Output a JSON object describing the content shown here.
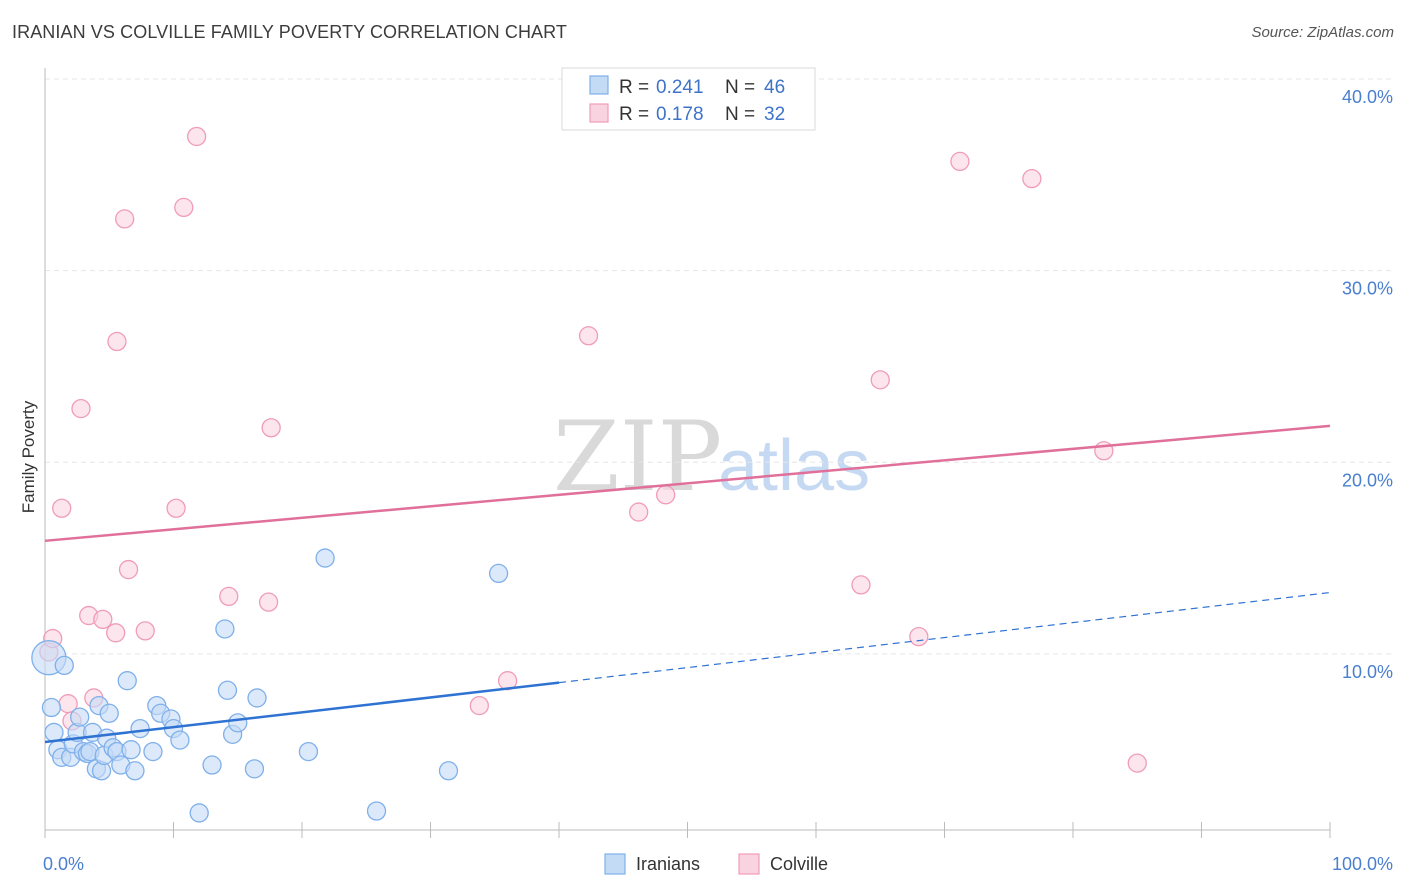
{
  "chart_data": {
    "type": "scatter",
    "title": "IRANIAN VS COLVILLE FAMILY POVERTY CORRELATION CHART",
    "source": "Source: ZipAtlas.com",
    "xlabel": "",
    "ylabel": "Family Poverty",
    "xlim": [
      0,
      100
    ],
    "ylim": [
      0,
      40
    ],
    "x_tick_labels": [
      "0.0%",
      "100.0%"
    ],
    "y_ticks": [
      10,
      20,
      30,
      40
    ],
    "y_tick_labels": [
      "10.0%",
      "20.0%",
      "30.0%",
      "40.0%"
    ],
    "watermark": {
      "zip": "ZIP",
      "atlas": "atlas"
    },
    "legend": [
      {
        "r_label": "R =",
        "r_value": "0.241",
        "n_label": "N =",
        "n_value": "46"
      },
      {
        "r_label": "R =",
        "r_value": "0.178",
        "n_label": "N =",
        "n_value": "32"
      }
    ],
    "series": [
      {
        "name": "Iranians",
        "color": "#7fb0ea",
        "fill": "#c4dbf6",
        "line_color": "#2e72d2",
        "trend": {
          "x0": 0,
          "y0": 5.4,
          "x1": 40,
          "y1": 8.5,
          "dash_x1": 100,
          "dash_y1": 13.2
        },
        "points": [
          [
            0.3,
            9.8
          ],
          [
            0.5,
            7.2
          ],
          [
            0.7,
            5.9
          ],
          [
            1.0,
            5.0
          ],
          [
            1.3,
            4.6
          ],
          [
            1.5,
            9.4
          ],
          [
            2.0,
            4.6
          ],
          [
            2.2,
            5.3
          ],
          [
            2.5,
            5.9
          ],
          [
            2.7,
            6.7
          ],
          [
            3.0,
            4.9
          ],
          [
            3.3,
            4.8
          ],
          [
            3.5,
            4.9
          ],
          [
            3.7,
            5.9
          ],
          [
            4.0,
            4.0
          ],
          [
            4.2,
            7.3
          ],
          [
            4.4,
            3.9
          ],
          [
            4.6,
            4.7
          ],
          [
            4.8,
            5.6
          ],
          [
            5.0,
            6.9
          ],
          [
            5.3,
            5.1
          ],
          [
            5.6,
            4.9
          ],
          [
            5.9,
            4.2
          ],
          [
            6.4,
            8.6
          ],
          [
            6.7,
            5.0
          ],
          [
            7.0,
            3.9
          ],
          [
            7.4,
            6.1
          ],
          [
            8.4,
            4.9
          ],
          [
            8.7,
            7.3
          ],
          [
            9.0,
            6.9
          ],
          [
            9.8,
            6.6
          ],
          [
            10.0,
            6.1
          ],
          [
            10.5,
            5.5
          ],
          [
            12.0,
            1.7
          ],
          [
            13.0,
            4.2
          ],
          [
            14.0,
            11.3
          ],
          [
            14.2,
            8.1
          ],
          [
            14.6,
            5.8
          ],
          [
            15.0,
            6.4
          ],
          [
            16.3,
            4.0
          ],
          [
            16.5,
            7.7
          ],
          [
            20.5,
            4.9
          ],
          [
            21.8,
            15.0
          ],
          [
            25.8,
            1.8
          ],
          [
            31.4,
            3.9
          ],
          [
            35.3,
            14.2
          ]
        ]
      },
      {
        "name": "Colville",
        "color": "#f09cb8",
        "fill": "#fad3e0",
        "line_color": "#e0709a",
        "trend": {
          "x0": 0,
          "y0": 15.9,
          "x1": 100,
          "y1": 21.9
        },
        "points": [
          [
            0.3,
            10.1
          ],
          [
            0.6,
            10.8
          ],
          [
            1.3,
            17.6
          ],
          [
            1.8,
            7.4
          ],
          [
            2.1,
            6.5
          ],
          [
            2.8,
            22.8
          ],
          [
            3.4,
            12.0
          ],
          [
            3.8,
            7.7
          ],
          [
            4.5,
            11.8
          ],
          [
            5.5,
            11.1
          ],
          [
            5.6,
            26.3
          ],
          [
            6.2,
            32.7
          ],
          [
            6.5,
            14.4
          ],
          [
            7.8,
            11.2
          ],
          [
            10.2,
            17.6
          ],
          [
            10.8,
            33.3
          ],
          [
            11.8,
            37.0
          ],
          [
            14.3,
            13.0
          ],
          [
            17.4,
            12.7
          ],
          [
            17.6,
            21.8
          ],
          [
            33.8,
            7.3
          ],
          [
            36.0,
            8.6
          ],
          [
            42.3,
            26.6
          ],
          [
            46.2,
            17.4
          ],
          [
            48.3,
            18.3
          ],
          [
            63.5,
            13.6
          ],
          [
            65.0,
            24.3
          ],
          [
            68.0,
            10.9
          ],
          [
            71.2,
            35.7
          ],
          [
            76.8,
            34.8
          ],
          [
            82.4,
            20.6
          ],
          [
            85.0,
            4.3
          ]
        ]
      }
    ]
  }
}
